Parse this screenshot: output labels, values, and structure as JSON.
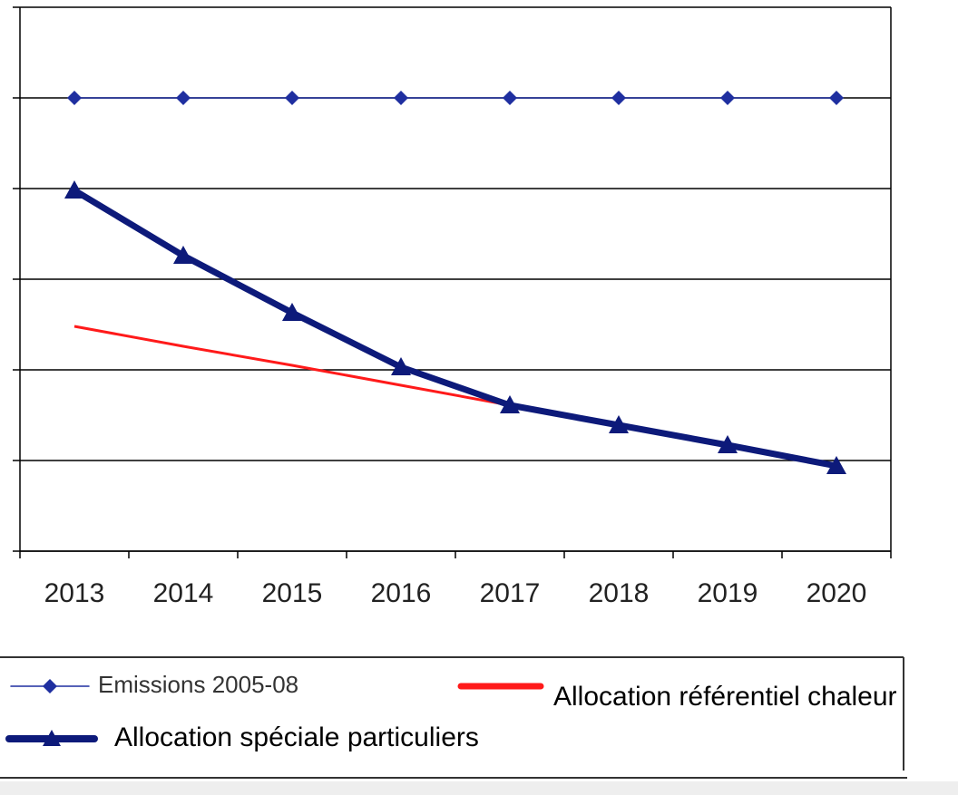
{
  "chart_data": {
    "type": "line",
    "categories": [
      "2013",
      "2014",
      "2015",
      "2016",
      "2017",
      "2018",
      "2019",
      "2020"
    ],
    "series": [
      {
        "name": "Emissions 2005-08",
        "color": "#1f2fa0",
        "marker": "diamond",
        "values": [
          5,
          5,
          5,
          5,
          5,
          5,
          5,
          5
        ]
      },
      {
        "name": "Allocation référentiel chaleur",
        "color": "#ff1a1a",
        "values": [
          2.48,
          2.26,
          2.05,
          1.83,
          1.61,
          1.39,
          1.17,
          0.94
        ]
      },
      {
        "name": "Allocation spéciale particuliers",
        "color": "#0d1a7a",
        "marker": "triangle",
        "values": [
          3.98,
          3.26,
          2.63,
          2.03,
          1.61,
          1.39,
          1.17,
          0.94
        ]
      }
    ],
    "ylim": [
      0,
      6
    ],
    "yticks": [
      0,
      1,
      2,
      3,
      4,
      5,
      6
    ],
    "grid": true
  }
}
